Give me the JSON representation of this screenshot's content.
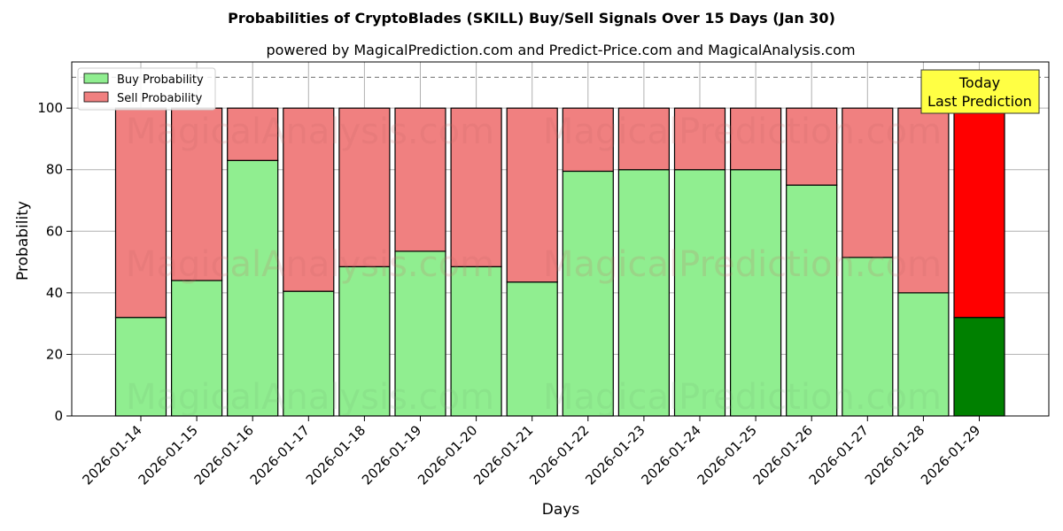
{
  "title": "Probabilities of CryptoBlades (SKILL) Buy/Sell Signals Over 15 Days (Jan 30)",
  "subtitle": "powered by MagicalPrediction.com and Predict-Price.com and MagicalAnalysis.com",
  "watermarks": [
    "MagicalAnalysis.com",
    "MagicalPrediction.com"
  ],
  "today_annotation": [
    "Today",
    "Last Prediction"
  ],
  "colors": {
    "buy": "#90ee90",
    "sell": "#f08080",
    "today_buy": "#008000",
    "today_sell": "#ff0000",
    "annotation_bg": "#ffff44"
  },
  "chart_data": {
    "type": "bar",
    "stacked": true,
    "xlabel": "Days",
    "ylabel": "Probability",
    "ylim": [
      0,
      115
    ],
    "yticks": [
      0,
      20,
      40,
      60,
      80,
      100
    ],
    "reference_line": 110,
    "grid": true,
    "legend_position": "top-left",
    "categories": [
      "2026-01-14",
      "2026-01-15",
      "2026-01-16",
      "2026-01-17",
      "2026-01-18",
      "2026-01-19",
      "2026-01-20",
      "2026-01-21",
      "2026-01-22",
      "2026-01-23",
      "2026-01-24",
      "2026-01-25",
      "2026-01-26",
      "2026-01-27",
      "2026-01-28",
      "2026-01-29"
    ],
    "series": [
      {
        "name": "Buy Probability",
        "values": [
          32,
          44,
          83,
          40.5,
          48.5,
          53.5,
          48.5,
          43.5,
          79.5,
          80,
          80,
          80,
          75,
          51.5,
          40,
          32
        ]
      },
      {
        "name": "Sell Probability",
        "values": [
          68,
          56,
          17,
          59.5,
          51.5,
          46.5,
          51.5,
          56.5,
          20.5,
          20,
          20,
          20,
          25,
          48.5,
          60,
          68
        ]
      }
    ]
  }
}
